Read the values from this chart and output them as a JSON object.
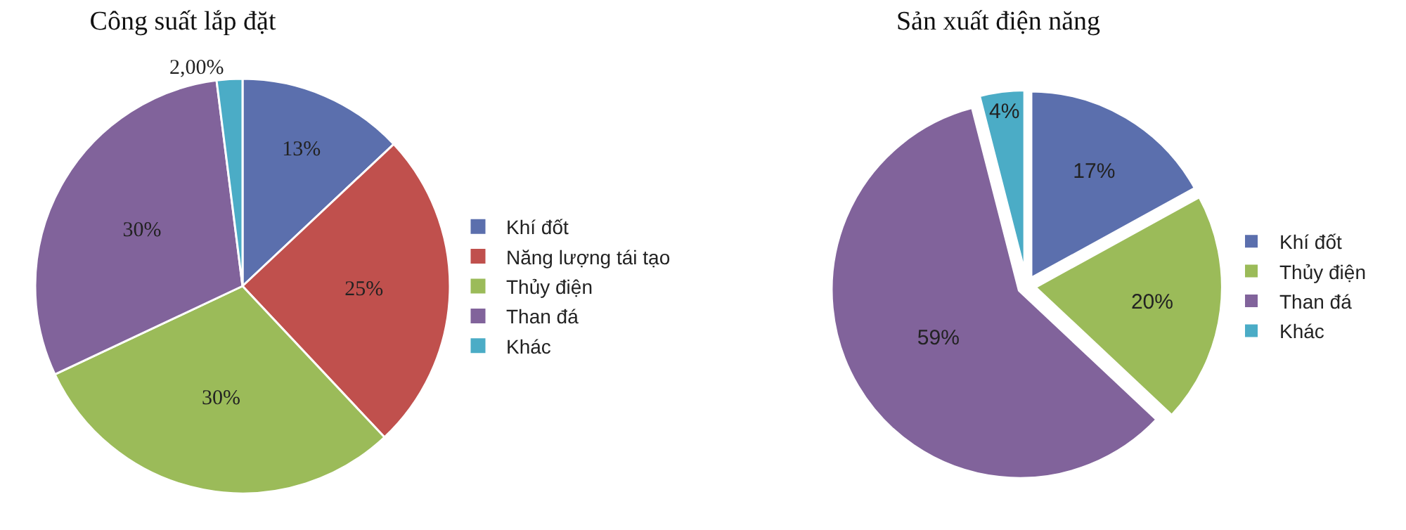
{
  "chart_data": [
    {
      "type": "pie",
      "title": "Công suất lắp đặt",
      "categories": [
        "Khí đốt",
        "Năng lượng tái tạo",
        "Thủy điện",
        "Than đá",
        "Khác"
      ],
      "values": [
        13,
        25,
        30,
        30,
        2
      ],
      "value_labels": [
        "13%",
        "25%",
        "30%",
        "30%",
        "2,00%"
      ],
      "colors": [
        "#5b6fad",
        "#c0504d",
        "#9bbb59",
        "#81639b",
        "#4bacc6"
      ],
      "legend": "right"
    },
    {
      "type": "pie",
      "title": "Sản xuất điện năng",
      "categories": [
        "Khí đốt",
        "Thủy điện",
        "Than đá",
        "Khác"
      ],
      "values": [
        17,
        20,
        59,
        4
      ],
      "value_labels": [
        "17%",
        "20%",
        "59%",
        "4%"
      ],
      "colors": [
        "#5b6fad",
        "#9bbb59",
        "#81639b",
        "#4bacc6"
      ],
      "legend": "right"
    }
  ]
}
